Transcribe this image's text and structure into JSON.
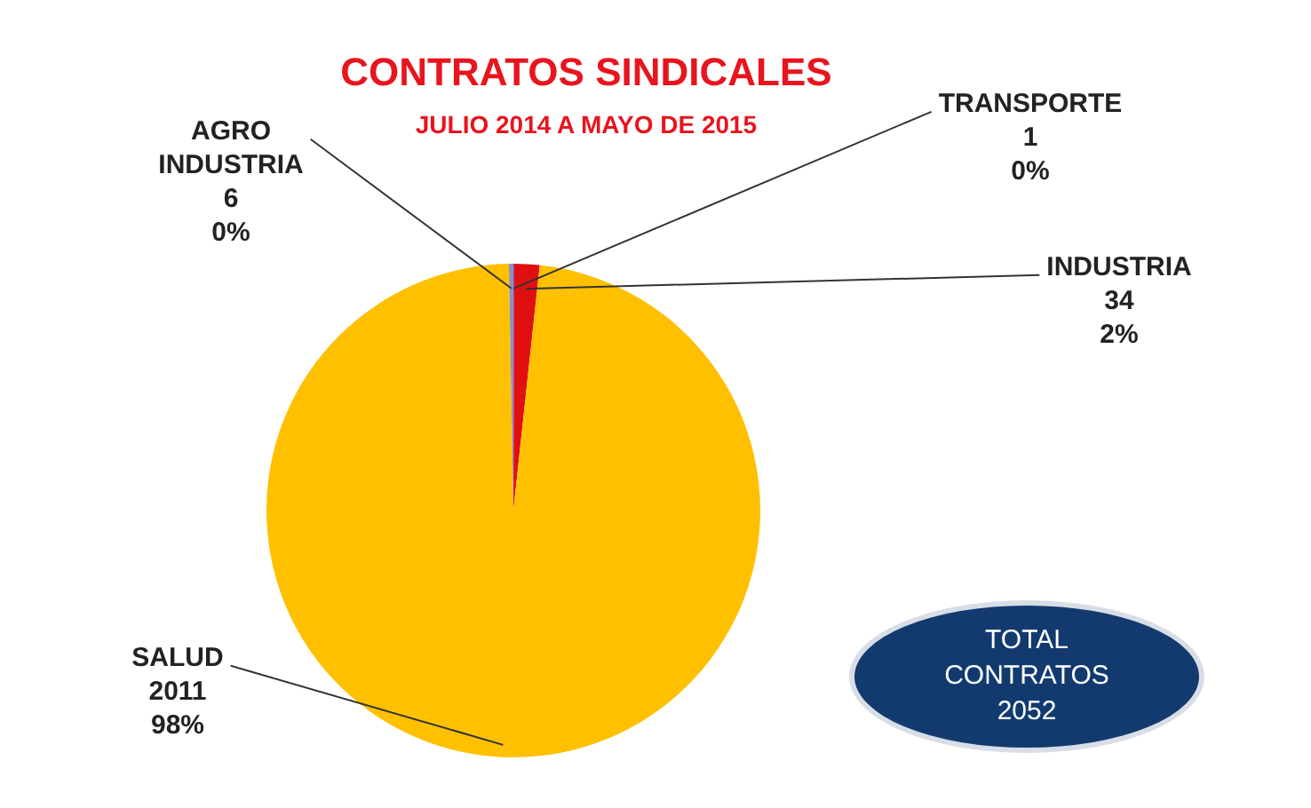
{
  "chart_data": {
    "type": "pie",
    "title": "CONTRATOS SINDICALES",
    "subtitle": "JULIO 2014 A MAYO DE 2015",
    "categories": [
      "TRANSPORTE",
      "INDUSTRIA",
      "SALUD",
      "AGRO INDUSTRIA"
    ],
    "values": [
      1,
      34,
      2011,
      6
    ],
    "value_labels": [
      "1\n0%",
      "34\n2%",
      "2011\n98%",
      "6\n0%"
    ],
    "colors": [
      "#5b3fa8",
      "#e01010",
      "#ffc000",
      "#8c8cc8"
    ],
    "legend": false,
    "annotations": [
      "TOTAL CONTRATOS 2052"
    ]
  }
}
